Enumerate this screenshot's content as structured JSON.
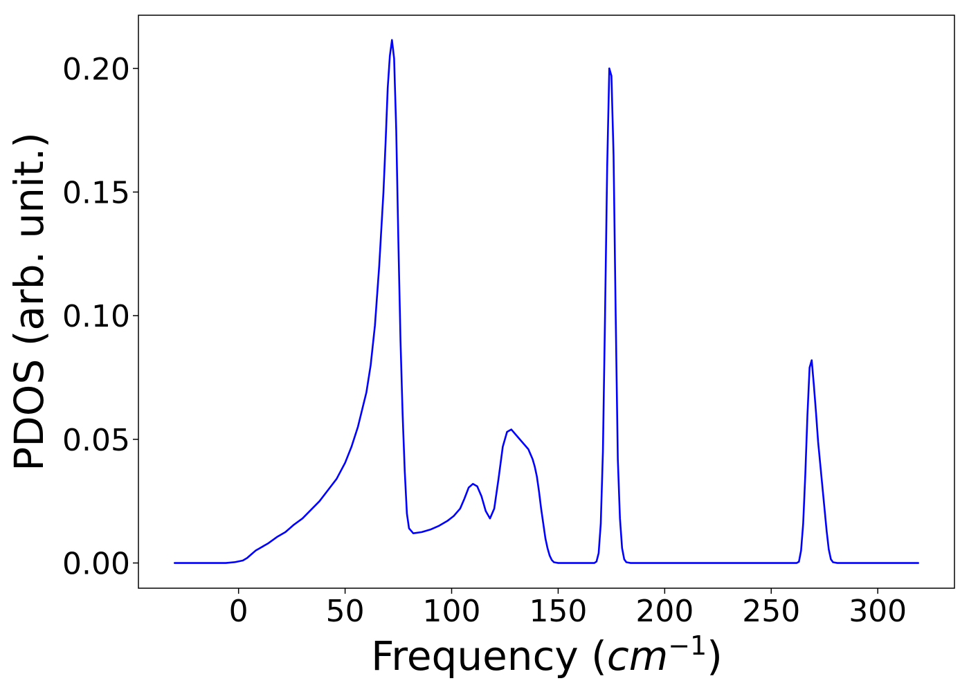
{
  "chart_data": {
    "type": "line",
    "title": "",
    "xlabel": {
      "prefix": "Frequency (",
      "math": "cm",
      "superscript": "−1",
      "suffix": ")"
    },
    "ylabel": "PDOS (arb. unit.)",
    "xlim": [
      -47,
      336
    ],
    "ylim": [
      -0.0102,
      0.2215
    ],
    "xticks": [
      {
        "value": 0,
        "label": "0"
      },
      {
        "value": 50,
        "label": "50"
      },
      {
        "value": 100,
        "label": "100"
      },
      {
        "value": 150,
        "label": "150"
      },
      {
        "value": 200,
        "label": "200"
      },
      {
        "value": 250,
        "label": "250"
      },
      {
        "value": 300,
        "label": "300"
      }
    ],
    "yticks": [
      {
        "value": 0.0,
        "label": "0.00"
      },
      {
        "value": 0.05,
        "label": "0.05"
      },
      {
        "value": 0.1,
        "label": "0.10"
      },
      {
        "value": 0.15,
        "label": "0.15"
      },
      {
        "value": 0.2,
        "label": "0.20"
      }
    ],
    "grid": false,
    "series": [
      {
        "color": "#0000ff",
        "points": [
          [
            -30,
            0.0
          ],
          [
            -20,
            0.0
          ],
          [
            -10,
            0.0
          ],
          [
            -6,
            0.0
          ],
          [
            -2,
            0.0003
          ],
          [
            2,
            0.001
          ],
          [
            4,
            0.002
          ],
          [
            6,
            0.0035
          ],
          [
            8,
            0.005
          ],
          [
            10,
            0.006
          ],
          [
            14,
            0.008
          ],
          [
            18,
            0.0105
          ],
          [
            22,
            0.0125
          ],
          [
            26,
            0.0155
          ],
          [
            30,
            0.018
          ],
          [
            34,
            0.0215
          ],
          [
            38,
            0.025
          ],
          [
            42,
            0.0295
          ],
          [
            46,
            0.034
          ],
          [
            50,
            0.0405
          ],
          [
            53,
            0.047
          ],
          [
            56,
            0.055
          ],
          [
            58,
            0.062
          ],
          [
            60,
            0.069
          ],
          [
            62,
            0.08
          ],
          [
            64,
            0.096
          ],
          [
            66,
            0.12
          ],
          [
            67,
            0.135
          ],
          [
            68,
            0.15
          ],
          [
            69,
            0.17
          ],
          [
            70,
            0.192
          ],
          [
            71,
            0.205
          ],
          [
            72,
            0.2115
          ],
          [
            73,
            0.204
          ],
          [
            74,
            0.175
          ],
          [
            75,
            0.13
          ],
          [
            76,
            0.09
          ],
          [
            77,
            0.06
          ],
          [
            78,
            0.037
          ],
          [
            79,
            0.02
          ],
          [
            80,
            0.014
          ],
          [
            82,
            0.012
          ],
          [
            86,
            0.0125
          ],
          [
            90,
            0.0135
          ],
          [
            94,
            0.015
          ],
          [
            98,
            0.017
          ],
          [
            101,
            0.019
          ],
          [
            104,
            0.022
          ],
          [
            106,
            0.026
          ],
          [
            108,
            0.0305
          ],
          [
            110,
            0.032
          ],
          [
            112,
            0.031
          ],
          [
            114,
            0.027
          ],
          [
            116,
            0.021
          ],
          [
            118,
            0.018
          ],
          [
            120,
            0.022
          ],
          [
            122,
            0.034
          ],
          [
            124,
            0.047
          ],
          [
            126,
            0.053
          ],
          [
            128,
            0.054
          ],
          [
            130,
            0.052
          ],
          [
            132,
            0.05
          ],
          [
            134,
            0.048
          ],
          [
            136,
            0.046
          ],
          [
            137,
            0.044
          ],
          [
            138,
            0.042
          ],
          [
            139,
            0.039
          ],
          [
            140,
            0.035
          ],
          [
            141,
            0.029
          ],
          [
            142,
            0.022
          ],
          [
            143,
            0.016
          ],
          [
            144,
            0.01
          ],
          [
            145,
            0.006
          ],
          [
            146,
            0.003
          ],
          [
            147,
            0.0012
          ],
          [
            148,
            0.0003
          ],
          [
            150,
            0.0
          ],
          [
            160,
            0.0
          ],
          [
            167,
            0.0
          ],
          [
            168,
            0.0006
          ],
          [
            169,
            0.004
          ],
          [
            170,
            0.016
          ],
          [
            171,
            0.045
          ],
          [
            172,
            0.1
          ],
          [
            173,
            0.16
          ],
          [
            174,
            0.2
          ],
          [
            175,
            0.197
          ],
          [
            176,
            0.165
          ],
          [
            177,
            0.1
          ],
          [
            178,
            0.042
          ],
          [
            179,
            0.018
          ],
          [
            180,
            0.006
          ],
          [
            181,
            0.0015
          ],
          [
            182,
            0.0003
          ],
          [
            184,
            0.0
          ],
          [
            200,
            0.0
          ],
          [
            250,
            0.0
          ],
          [
            262,
            0.0
          ],
          [
            263,
            0.0005
          ],
          [
            264,
            0.005
          ],
          [
            265,
            0.016
          ],
          [
            266,
            0.036
          ],
          [
            267,
            0.06
          ],
          [
            268,
            0.079
          ],
          [
            269,
            0.082
          ],
          [
            270,
            0.072
          ],
          [
            271,
            0.061
          ],
          [
            272,
            0.049
          ],
          [
            273,
            0.04
          ],
          [
            274,
            0.031
          ],
          [
            275,
            0.022
          ],
          [
            276,
            0.013
          ],
          [
            277,
            0.0055
          ],
          [
            278,
            0.0015
          ],
          [
            279,
            0.0003
          ],
          [
            281,
            0.0
          ],
          [
            300,
            0.0
          ],
          [
            319,
            0.0
          ]
        ]
      }
    ]
  }
}
